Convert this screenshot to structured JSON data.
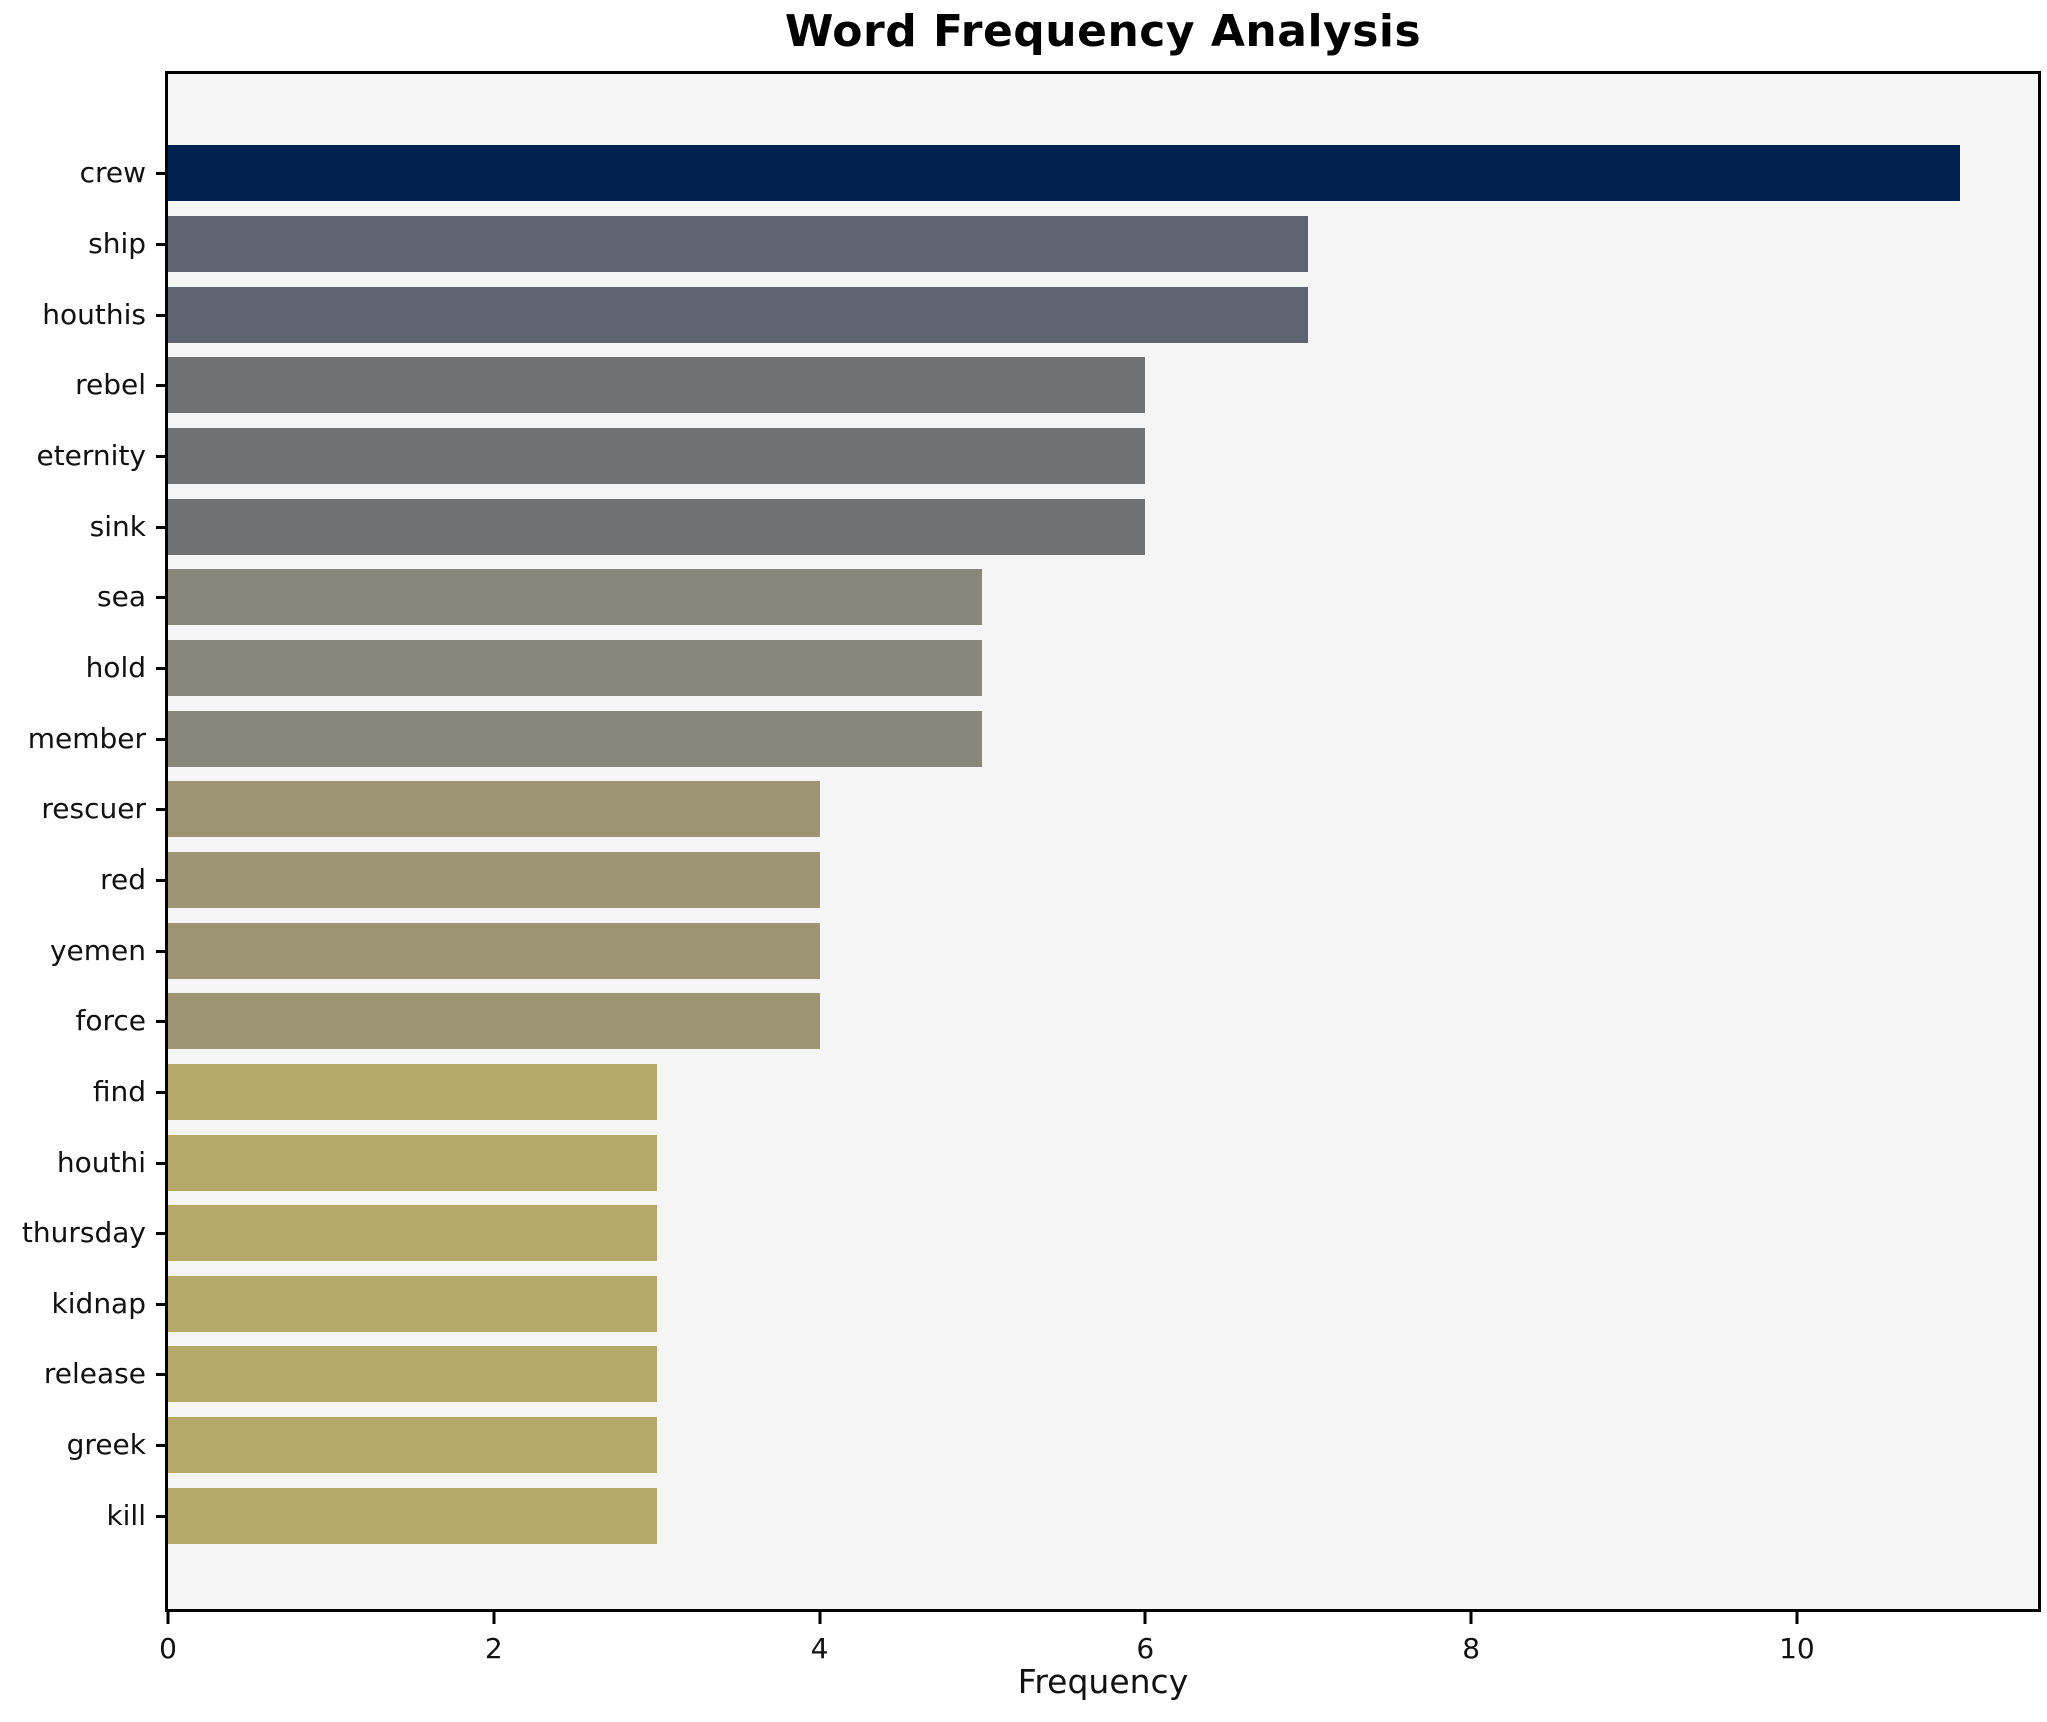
{
  "chart_data": {
    "type": "bar",
    "orientation": "horizontal",
    "title": "Word Frequency Analysis",
    "xlabel": "Frequency",
    "ylabel": "",
    "categories": [
      "crew",
      "ship",
      "houthis",
      "rebel",
      "eternity",
      "sink",
      "sea",
      "hold",
      "member",
      "rescuer",
      "red",
      "yemen",
      "force",
      "find",
      "houthi",
      "thursday",
      "kidnap",
      "release",
      "greek",
      "kill"
    ],
    "values": [
      11,
      7,
      7,
      6,
      6,
      6,
      5,
      5,
      5,
      4,
      4,
      4,
      4,
      3,
      3,
      3,
      3,
      3,
      3,
      3
    ],
    "bar_colors": [
      "#02224e",
      "#5d6370",
      "#5d6370",
      "#707172",
      "#707172",
      "#707172",
      "#87877a",
      "#87877a",
      "#87877a",
      "#9c9472",
      "#9c9472",
      "#9c9472",
      "#9c9472",
      "#b5a96a",
      "#b5a96a",
      "#b5a96a",
      "#b5a96a",
      "#b5a96a",
      "#b5a96a",
      "#b5a96a"
    ],
    "xlim": [
      0,
      11.48
    ],
    "xticks": [
      0,
      2,
      4,
      6,
      8,
      10
    ],
    "grid": false,
    "legend": false,
    "plot_background": "#f5f5f6",
    "figure_background": "#ffffff",
    "axis_color": "#000000",
    "text_color": "#111111"
  }
}
